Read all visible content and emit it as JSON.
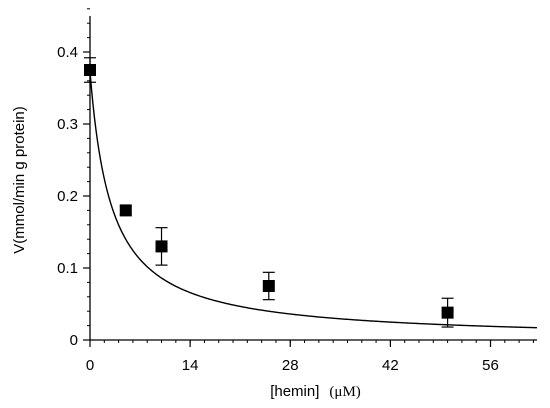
{
  "chart_data": {
    "type": "scatter",
    "title": "",
    "xlabel": "[hemin]",
    "xlabel_unit": "(μM)",
    "ylabel": "V(mmol/min g protein)",
    "xlim": [
      0,
      62.5
    ],
    "ylim": [
      0,
      0.45
    ],
    "xticks": [
      0,
      14,
      28,
      42,
      56
    ],
    "xtick_labels": [
      "0",
      "14",
      "28",
      "42",
      "56"
    ],
    "yticks": [
      0,
      0.1,
      0.2,
      0.3,
      0.4
    ],
    "ytick_labels": [
      "0",
      "0.1",
      "0.2",
      "0.3",
      "0.4"
    ],
    "x_minor_step": 2,
    "y_minor_step": 0.02,
    "grid": false,
    "legend": "none",
    "series": [
      {
        "marker": "filled-square",
        "color": "#000000",
        "points": [
          {
            "x": 0,
            "y": 0.375,
            "err": 0.017
          },
          {
            "x": 5,
            "y": 0.18,
            "err": 0.006
          },
          {
            "x": 10,
            "y": 0.13,
            "err": 0.026
          },
          {
            "x": 25,
            "y": 0.075,
            "err": 0.019
          },
          {
            "x": 50,
            "y": 0.038,
            "err": 0.02
          }
        ]
      }
    ],
    "fit_curve": {
      "color": "#000000",
      "model": "hyperbolic decay",
      "V0": 0.373,
      "K": 3.0,
      "x_range": [
        0,
        62.5
      ]
    }
  }
}
